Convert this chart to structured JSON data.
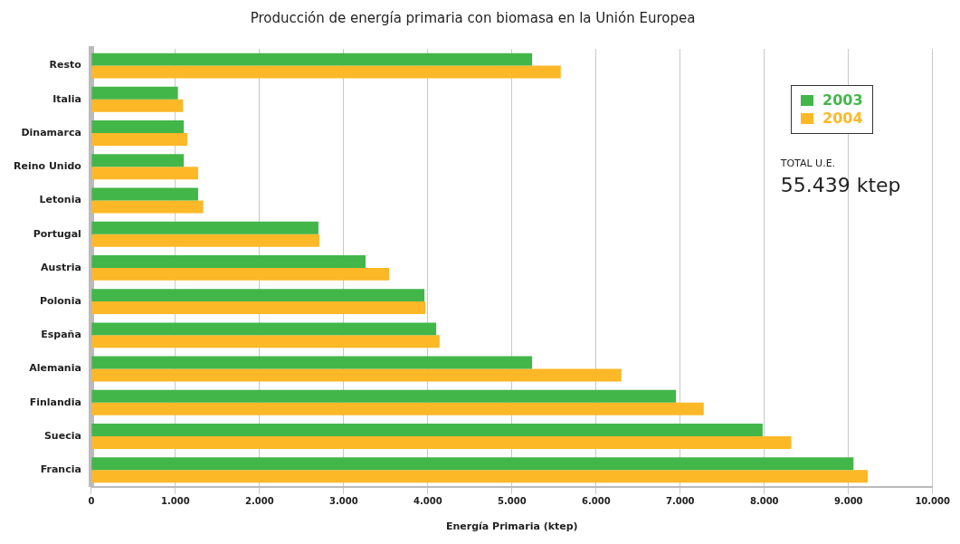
{
  "chart_data": {
    "type": "bar",
    "orientation": "horizontal",
    "title": "Producción de energía primaria con biomasa en la Unión Europea",
    "xlabel": "Energía Primaria (ktep)",
    "categories": [
      "Resto",
      "Italia",
      "Dinamarca",
      "Reino Unido",
      "Letonia",
      "Portugal",
      "Austria",
      "Polonia",
      "España",
      "Alemania",
      "Finlandia",
      "Suecia",
      "Francia"
    ],
    "series": [
      {
        "name": "2003",
        "color": "#43b649",
        "values": [
          5240,
          1030,
          1100,
          1100,
          1270,
          2700,
          3260,
          3960,
          4100,
          5240,
          6950,
          7980,
          9060
        ]
      },
      {
        "name": "2004",
        "color": "#fdb827",
        "values": [
          5580,
          1090,
          1140,
          1270,
          1330,
          2710,
          3540,
          3970,
          4140,
          6300,
          7280,
          8320,
          9230
        ]
      }
    ],
    "xlim": [
      0,
      10000
    ],
    "xticks": [
      0,
      {
        "value": 1000,
        "label": "1.000"
      },
      {
        "value": 2000,
        "label": "2.000"
      },
      {
        "value": 3000,
        "label": "3.000"
      },
      {
        "value": 4000,
        "label": "4.000"
      },
      {
        "value": 5000,
        "label": "5.000"
      },
      {
        "value": 6000,
        "label": "6.000"
      },
      {
        "value": 7000,
        "label": "7.000"
      },
      {
        "value": 8000,
        "label": "8.000"
      },
      {
        "value": 9000,
        "label": "9.000"
      },
      {
        "value": 10000,
        "label": "10.000"
      }
    ],
    "grid": "x",
    "legend": "top right",
    "annotations": [
      "TOTAL U.E.",
      "55.439 ktep"
    ]
  }
}
